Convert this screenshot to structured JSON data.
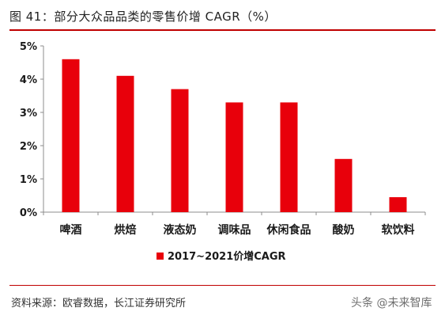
{
  "figure": {
    "title": "图 41：部分大众品品类的零售价增 CAGR（%）",
    "source": "资料来源：欧睿数据，长江证券研究所",
    "watermark": "头条 @未来智库"
  },
  "colors": {
    "bar": "#e8000b",
    "axis": "#8c8c8c",
    "rule": "#c00000"
  },
  "chart_data": {
    "type": "bar",
    "categories": [
      "啤酒",
      "烘焙",
      "液态奶",
      "调味品",
      "休闲食品",
      "酸奶",
      "软饮料"
    ],
    "series": [
      {
        "name": "2017~2021价增CAGR",
        "values": [
          4.6,
          4.1,
          3.7,
          3.3,
          3.3,
          1.6,
          0.45
        ]
      }
    ],
    "yticks": [
      "0%",
      "1%",
      "2%",
      "3%",
      "4%",
      "5%"
    ],
    "ylim": [
      0,
      5
    ],
    "grid": false,
    "legend_position": "bottom"
  }
}
